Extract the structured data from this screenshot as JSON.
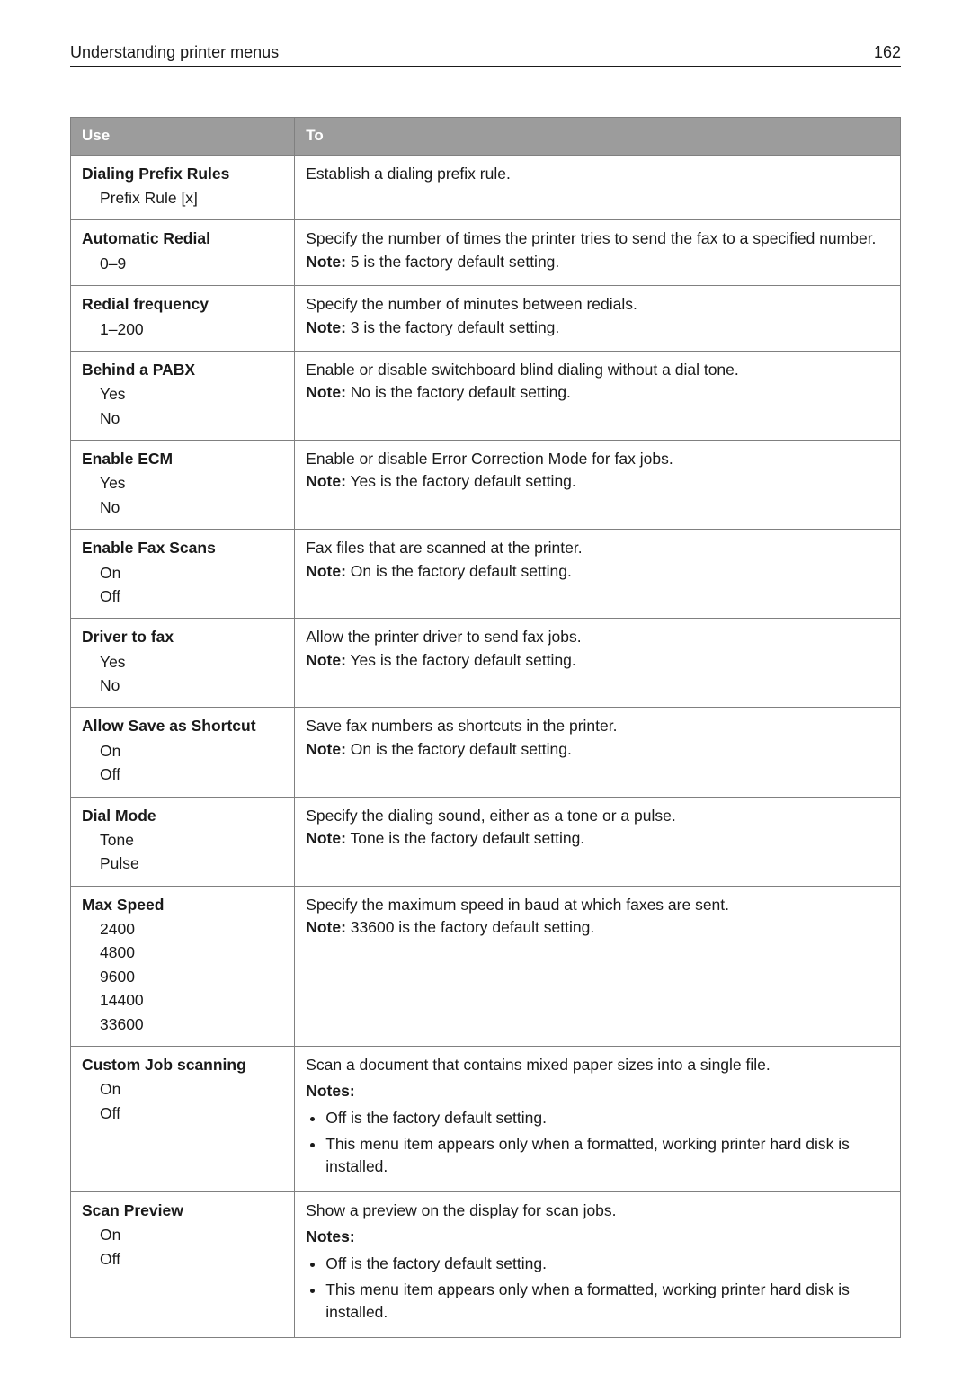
{
  "header": {
    "title": "Understanding printer menus",
    "page_number": "162"
  },
  "table": {
    "columns": {
      "use": "Use",
      "to": "To"
    },
    "note_label": "Note:",
    "notes_label": "Notes:",
    "rows": [
      {
        "use_title": "Dialing Prefix Rules",
        "use_options": [
          "Prefix Rule [x]"
        ],
        "to_text": "Establish a dialing prefix rule.",
        "note": null,
        "notes": null
      },
      {
        "use_title": "Automatic Redial",
        "use_options": [
          "0–9"
        ],
        "to_text": "Specify the number of times the printer tries to send the fax to a specified number.",
        "note": "5 is the factory default setting.",
        "notes": null
      },
      {
        "use_title": "Redial frequency",
        "use_options": [
          "1–200"
        ],
        "to_text": "Specify the number of minutes between redials.",
        "note": "3 is the factory default setting.",
        "notes": null
      },
      {
        "use_title": "Behind a PABX",
        "use_options": [
          "Yes",
          "No"
        ],
        "to_text": "Enable or disable switchboard blind dialing without a dial tone.",
        "note": "No is the factory default setting.",
        "notes": null
      },
      {
        "use_title": "Enable ECM",
        "use_options": [
          "Yes",
          "No"
        ],
        "to_text": "Enable or disable Error Correction Mode for fax jobs.",
        "note": "Yes is the factory default setting.",
        "notes": null
      },
      {
        "use_title": "Enable Fax Scans",
        "use_options": [
          "On",
          "Off"
        ],
        "to_text": "Fax files that are scanned at the printer.",
        "note": "On is the factory default setting.",
        "notes": null
      },
      {
        "use_title": "Driver to fax",
        "use_options": [
          "Yes",
          "No"
        ],
        "to_text": "Allow the printer driver to send fax jobs.",
        "note": "Yes is the factory default setting.",
        "notes": null
      },
      {
        "use_title": "Allow Save as Shortcut",
        "use_options": [
          "On",
          "Off"
        ],
        "to_text": "Save fax numbers as shortcuts in the printer.",
        "note": "On is the factory default setting.",
        "notes": null
      },
      {
        "use_title": "Dial Mode",
        "use_options": [
          "Tone",
          "Pulse"
        ],
        "to_text": "Specify the dialing sound, either as a tone or a pulse.",
        "note": "Tone is the factory default setting.",
        "notes": null
      },
      {
        "use_title": "Max Speed",
        "use_options": [
          "2400",
          "4800",
          "9600",
          "14400",
          "33600"
        ],
        "to_text": "Specify the maximum speed in baud at which faxes are sent.",
        "note": "33600 is the factory default setting.",
        "notes": null
      },
      {
        "use_title": "Custom Job scanning",
        "use_options": [
          "On",
          "Off"
        ],
        "to_text": "Scan a document that contains mixed paper sizes into a single file.",
        "note": null,
        "notes": [
          "Off is the factory default setting.",
          "This menu item appears only when a formatted, working printer hard disk is installed."
        ]
      },
      {
        "use_title": "Scan Preview",
        "use_options": [
          "On",
          "Off"
        ],
        "to_text": "Show a preview on the display for scan jobs.",
        "note": null,
        "notes": [
          "Off is the factory default setting.",
          "This menu item appears only when a formatted, working printer hard disk is installed."
        ]
      }
    ]
  }
}
